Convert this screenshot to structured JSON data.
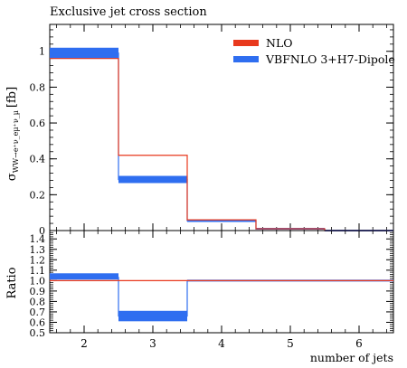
{
  "chart_data": [
    {
      "type": "step",
      "title": "Exclusive jet cross section",
      "ylabel_main": "σ",
      "ylabel_sub": "WW→e⁺ν_eμ⁺ν_μ",
      "ylabel_unit": "[fb]",
      "ylim": [
        0,
        1.15
      ],
      "yticks": [
        0,
        0.2,
        0.4,
        0.6,
        0.8,
        1
      ],
      "ytick_labels": [
        "0",
        "0.2",
        "0.4",
        "0.6",
        "0.8",
        "1"
      ],
      "xlim": [
        1.5,
        6.5
      ],
      "bin_edges": [
        1.5,
        2.5,
        3.5,
        4.5,
        5.5,
        6.5
      ],
      "legend_position": "top-right",
      "series": [
        {
          "name": "NLO",
          "color": "#e8391d",
          "style": "line",
          "values": [
            0.96,
            0.42,
            0.06,
            0.01,
            0.0
          ]
        },
        {
          "name": "VBFNLO 3+H7-Dipole",
          "color": "#2f6ef0",
          "style": "band",
          "values": [
            0.99,
            0.285,
            0.055,
            0.008,
            0.0
          ],
          "band_low": [
            0.96,
            0.265,
            0.048,
            0.006,
            0.0
          ],
          "band_high": [
            1.02,
            0.305,
            0.062,
            0.01,
            0.0
          ]
        }
      ]
    },
    {
      "type": "step",
      "ylabel": "Ratio",
      "xlabel": "number of jets",
      "ylim": [
        0.5,
        1.48
      ],
      "yticks": [
        0.5,
        0.6,
        0.7,
        0.8,
        0.9,
        1.0,
        1.1,
        1.2,
        1.3,
        1.4
      ],
      "ytick_labels": [
        "0.5",
        "0.6",
        "0.7",
        "0.8",
        "0.9",
        "1.0",
        "1.1",
        "1.2",
        "1.3",
        "1.4"
      ],
      "xticks": [
        2,
        3,
        4,
        5,
        6
      ],
      "xtick_labels": [
        "2",
        "3",
        "4",
        "5",
        "6"
      ],
      "bin_edges": [
        1.5,
        2.5,
        3.5,
        4.5,
        5.5,
        6.5
      ],
      "series": [
        {
          "name": "NLO",
          "color": "#e8391d",
          "style": "line",
          "values": [
            1.0,
            1.0,
            1.0,
            1.0,
            1.0
          ]
        },
        {
          "name": "VBFNLO 3+H7-Dipole",
          "color": "#2f6ef0",
          "style": "band",
          "values": [
            1.03,
            0.66,
            1.0,
            1.0,
            1.0
          ],
          "band_low": [
            1.01,
            0.61,
            1.0,
            1.0,
            1.0
          ],
          "band_high": [
            1.07,
            0.71,
            1.0,
            1.0,
            1.0
          ]
        }
      ]
    }
  ]
}
